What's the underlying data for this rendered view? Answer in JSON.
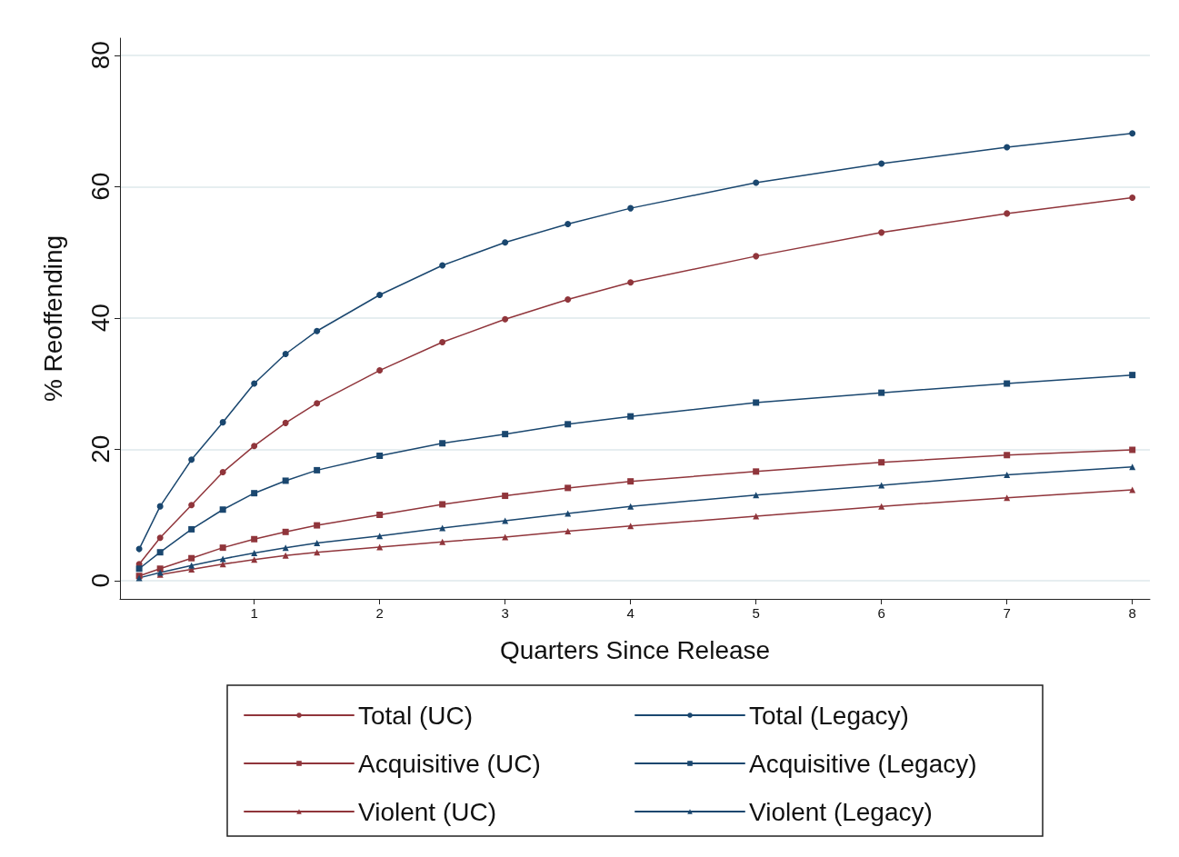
{
  "chart_data": {
    "type": "line",
    "xlabel": "Quarters Since Release",
    "ylabel": "% Reoffending",
    "xlim": [
      -0.07,
      8.14
    ],
    "xticks": [
      1,
      2,
      3,
      4,
      5,
      6,
      7,
      8
    ],
    "ylim": [
      -2.8,
      82.6
    ],
    "yticks": [
      0,
      20,
      40,
      60,
      80
    ],
    "grid": "y",
    "legend": "bottom",
    "line_style": "solid",
    "x": [
      0.083,
      0.25,
      0.5,
      0.75,
      1,
      1.25,
      1.5,
      2,
      2.5,
      3,
      3.5,
      4,
      5,
      6,
      7,
      8
    ],
    "series": [
      {
        "name": "Total (UC)",
        "color": "#90353b",
        "marker": "circle",
        "values": [
          2.5,
          6.5,
          11.5,
          16.5,
          20.5,
          24,
          27,
          32,
          36.3,
          39.8,
          42.8,
          45.4,
          49.4,
          53,
          55.9,
          58.3
        ]
      },
      {
        "name": "Total (Legacy)",
        "color": "#1a476f",
        "marker": "circle",
        "values": [
          4.8,
          11.3,
          18.4,
          24.1,
          30,
          34.5,
          38,
          43.5,
          48,
          51.5,
          54.3,
          56.7,
          60.6,
          63.5,
          66,
          68.1
        ]
      },
      {
        "name": "Acquisitive (UC)",
        "color": "#90353b",
        "marker": "square",
        "values": [
          0.7,
          1.8,
          3.4,
          5,
          6.3,
          7.4,
          8.4,
          10,
          11.6,
          12.9,
          14.1,
          15.1,
          16.6,
          18,
          19.1,
          19.9
        ]
      },
      {
        "name": "Acquisitive (Legacy)",
        "color": "#1a476f",
        "marker": "square",
        "values": [
          1.8,
          4.3,
          7.8,
          10.8,
          13.3,
          15.2,
          16.8,
          19,
          20.9,
          22.3,
          23.8,
          25,
          27.1,
          28.6,
          30,
          31.3
        ]
      },
      {
        "name": "Violent (UC)",
        "color": "#90353b",
        "marker": "triangle",
        "values": [
          null,
          0.9,
          1.7,
          2.5,
          3.2,
          3.8,
          4.3,
          5.1,
          5.9,
          6.6,
          7.5,
          8.3,
          9.8,
          11.3,
          12.6,
          13.8
        ]
      },
      {
        "name": "Violent (Legacy)",
        "color": "#1a476f",
        "marker": "triangle",
        "values": [
          0.4,
          1.2,
          2.3,
          3.3,
          4.2,
          5,
          5.7,
          6.8,
          8,
          9.1,
          10.2,
          11.3,
          13,
          14.5,
          16.1,
          17.3
        ]
      }
    ]
  }
}
